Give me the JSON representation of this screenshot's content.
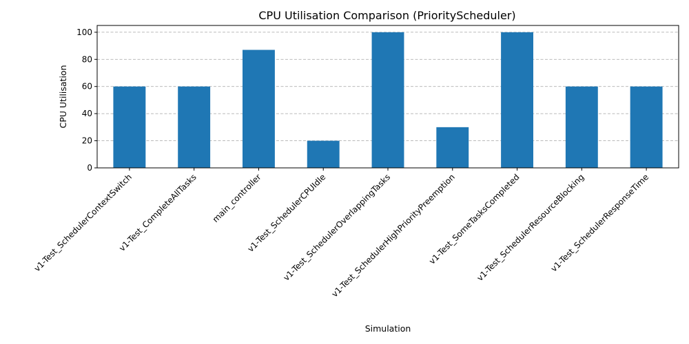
{
  "chart_data": {
    "type": "bar",
    "title": "CPU Utilisation Comparison (PriorityScheduler)",
    "xlabel": "Simulation",
    "ylabel": "CPU Utilisation",
    "categories": [
      "v1-Test_SchedulerContextSwitch",
      "v1-Test_CompleteAllTasks",
      "main_controller",
      "v1-Test_SchedulerCPUIdle",
      "v1-Test_SchedulerOverlappingTasks",
      "v1-Test_SchedulerHighPriorityPreemption",
      "v1-Test_SomeTasksCompleted",
      "v1-Test_SchedulerResourceBlocking",
      "v1-Test_SchedulerResponseTime"
    ],
    "values": [
      60,
      60,
      87,
      20,
      100,
      30,
      100,
      60,
      60
    ],
    "ylim": [
      0,
      105
    ],
    "yticks": [
      "0",
      "20",
      "40",
      "60",
      "80",
      "100"
    ],
    "grid": "y-dashed",
    "bar_color": "#1f77b4",
    "grid_color": "#b0b0b0"
  }
}
